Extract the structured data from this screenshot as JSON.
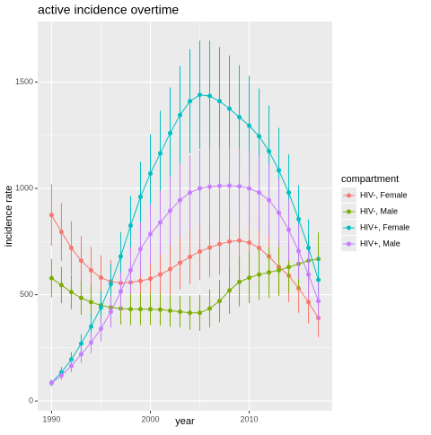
{
  "chart_data": {
    "type": "line",
    "title": "active incidence overtime",
    "x_label": "year",
    "y_label": "incidence rate",
    "legend_title": "compartment",
    "legend_position": "right",
    "grid": true,
    "x": [
      1990,
      1991,
      1992,
      1993,
      1994,
      1995,
      1996,
      1997,
      1998,
      1999,
      2000,
      2001,
      2002,
      2003,
      2004,
      2005,
      2006,
      2007,
      2008,
      2009,
      2010,
      2011,
      2012,
      2013,
      2014,
      2015,
      2016,
      2017
    ],
    "xlim": [
      1988.6,
      2018.4
    ],
    "xticks": [
      1990,
      2000,
      2010
    ],
    "ylim": [
      -46,
      1785
    ],
    "yticks": [
      0,
      500,
      1000,
      1500
    ],
    "series": [
      {
        "name": "HIV-, Female",
        "color": "#f8766d",
        "values": [
          875,
          795,
          720,
          660,
          615,
          580,
          562,
          555,
          558,
          565,
          575,
          595,
          620,
          650,
          678,
          703,
          722,
          738,
          750,
          755,
          745,
          720,
          680,
          630,
          590,
          530,
          465,
          390
        ],
        "errors": [
          145,
          135,
          125,
          115,
          110,
          105,
          100,
          100,
          100,
          105,
          110,
          115,
          120,
          125,
          130,
          135,
          140,
          145,
          150,
          150,
          150,
          145,
          140,
          130,
          125,
          115,
          100,
          90
        ]
      },
      {
        "name": "HIV-, Male",
        "color": "#7cae00",
        "values": [
          578,
          545,
          512,
          485,
          465,
          450,
          440,
          435,
          432,
          432,
          432,
          430,
          425,
          420,
          415,
          415,
          435,
          470,
          520,
          560,
          580,
          595,
          605,
          615,
          630,
          645,
          660,
          668
        ],
        "errors": [
          90,
          85,
          80,
          80,
          78,
          75,
          75,
          75,
          75,
          75,
          75,
          75,
          75,
          75,
          80,
          85,
          90,
          100,
          110,
          115,
          120,
          120,
          120,
          120,
          120,
          120,
          125,
          125
        ]
      },
      {
        "name": "HIV+, Female",
        "color": "#00bfc4",
        "values": [
          85,
          135,
          195,
          270,
          350,
          440,
          550,
          680,
          825,
          960,
          1070,
          1165,
          1260,
          1345,
          1410,
          1440,
          1435,
          1410,
          1375,
          1335,
          1295,
          1245,
          1175,
          1085,
          980,
          855,
          720,
          570
        ],
        "errors": [
          15,
          25,
          35,
          45,
          60,
          75,
          95,
          115,
          140,
          165,
          185,
          200,
          215,
          230,
          245,
          255,
          260,
          255,
          250,
          245,
          235,
          225,
          215,
          200,
          180,
          160,
          135,
          110
        ]
      },
      {
        "name": "HIV+, Male",
        "color": "#c77cff",
        "values": [
          85,
          120,
          165,
          220,
          275,
          340,
          420,
          515,
          615,
          715,
          785,
          840,
          895,
          945,
          980,
          1000,
          1008,
          1012,
          1013,
          1010,
          1000,
          980,
          945,
          885,
          805,
          705,
          595,
          470
        ],
        "errors": [
          15,
          22,
          30,
          40,
          50,
          60,
          75,
          90,
          110,
          125,
          140,
          150,
          160,
          170,
          175,
          180,
          180,
          180,
          180,
          180,
          178,
          175,
          170,
          160,
          145,
          130,
          110,
          90
        ]
      }
    ]
  }
}
